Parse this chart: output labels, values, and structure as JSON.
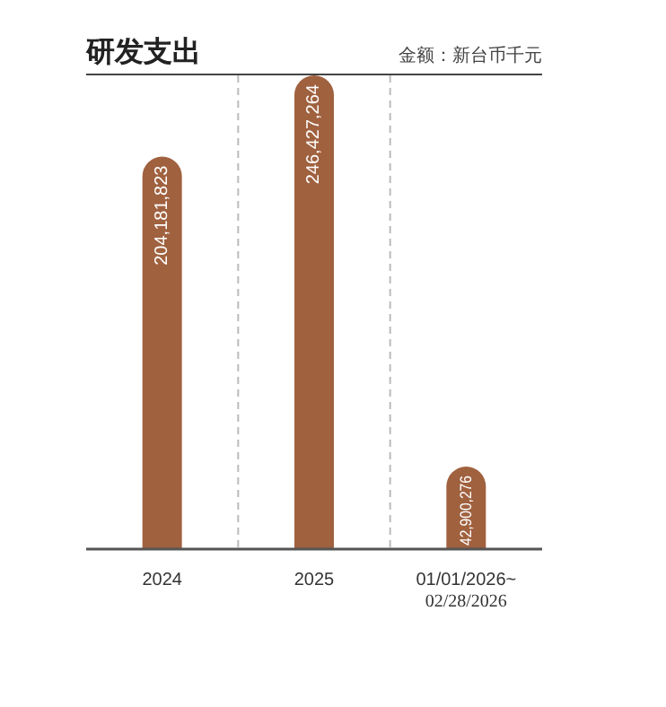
{
  "chart_data": {
    "type": "bar",
    "title": "研发支出",
    "subtitle": "金额：新台币千元",
    "categories": [
      "2024",
      "2025",
      "01/01/2026~\n02/28/2026"
    ],
    "values": [
      204181823,
      246427264,
      42900276
    ],
    "color": "#a0613f",
    "value_labels": [
      "204,181,823",
      "246,427,264",
      "42,900,276"
    ],
    "grid": "x"
  }
}
